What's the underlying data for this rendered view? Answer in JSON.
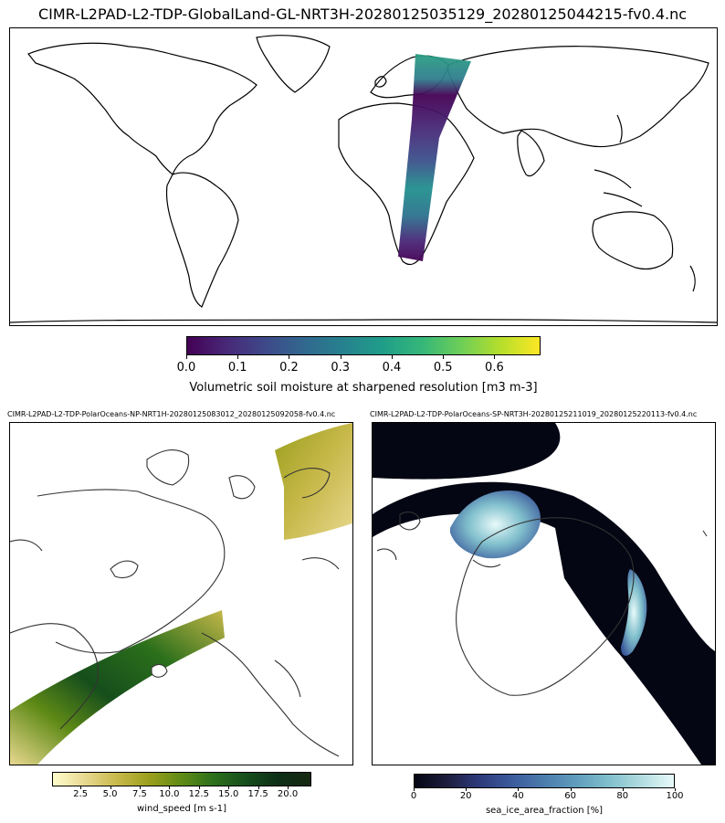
{
  "top_map": {
    "title": "CIMR-L2PAD-L2-TDP-GlobalLand-GL-NRT3H-20280125035129_20280125044215-fv0.4.nc",
    "colorbar": {
      "colormap": "viridis",
      "colors": [
        "#440154",
        "#482878",
        "#3e4989",
        "#31688e",
        "#26828e",
        "#1f9e89",
        "#35b779",
        "#6ece58",
        "#b5de2b",
        "#fde725"
      ],
      "ticks": [
        "0.0",
        "0.1",
        "0.2",
        "0.3",
        "0.4",
        "0.5",
        "0.6"
      ],
      "range": [
        0.0,
        0.69
      ],
      "label": "Volumetric soil moisture at sharpened resolution [m3 m-3]"
    }
  },
  "north_map": {
    "title": "CIMR-L2PAD-L2-TDP-PolarOceans-NP-NRT1H-20280125083012_20280125092058-fv0.4.nc",
    "colorbar": {
      "colormap": "speed",
      "colors": [
        "#fffdcd",
        "#e8d88f",
        "#c7b84a",
        "#9a9f1c",
        "#5f8a16",
        "#2b6f1b",
        "#164e1c",
        "#0d2e16",
        "#162710"
      ],
      "ticks": [
        "2.5",
        "5.0",
        "7.5",
        "10.0",
        "12.5",
        "15.0",
        "17.5",
        "20.0"
      ],
      "range": [
        0.1,
        22.0
      ],
      "label": "wind_speed [m s-1]"
    }
  },
  "south_map": {
    "title": "CIMR-L2PAD-L2-TDP-PolarOceans-SP-NRT3H-20280125211019_20280125220113-fv0.4.nc",
    "colorbar": {
      "colormap": "ice",
      "colors": [
        "#040613",
        "#1d1d3e",
        "#2d3a7b",
        "#3b5a9c",
        "#4b7cad",
        "#5f9dbd",
        "#80bfcc",
        "#b1dce0",
        "#e8fafa"
      ],
      "ticks": [
        "0",
        "20",
        "40",
        "60",
        "80",
        "100"
      ],
      "range": [
        0,
        100
      ],
      "label": "sea_ice_area_fraction [%]"
    }
  }
}
